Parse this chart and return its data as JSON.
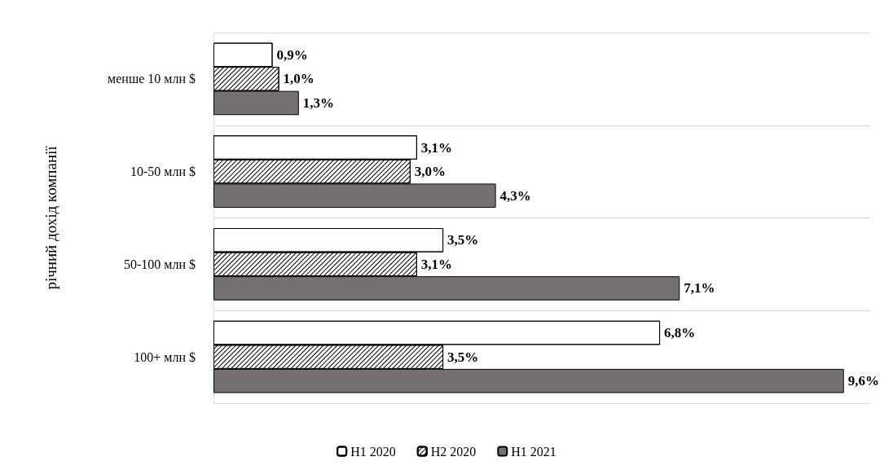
{
  "chart_data": {
    "type": "bar",
    "orientation": "horizontal",
    "ylabel": "річний дохід компанії",
    "categories": [
      "менше 10 млн $",
      "10-50 млн $",
      "50-100 млн $",
      "100+ млн $"
    ],
    "series": [
      {
        "name": "H1 2020",
        "color": "#ffffff",
        "values": [
          0.9,
          3.1,
          3.5,
          6.8
        ],
        "value_labels": [
          "0,9%",
          "3,1%",
          "3,5%",
          "6,8%"
        ]
      },
      {
        "name": "H2 2020",
        "color": "#ffffff",
        "values": [
          1.0,
          3.0,
          3.1,
          3.5
        ],
        "value_labels": [
          "1,0%",
          "3,0%",
          "3,1%",
          "3,5%"
        ]
      },
      {
        "name": "H1 2021",
        "color": "#767171",
        "values": [
          1.3,
          4.3,
          7.1,
          9.6
        ],
        "value_labels": [
          "1,3%",
          "4,3%",
          "7,1%",
          "9,6%"
        ]
      }
    ],
    "grid": "y",
    "legend": "bottom"
  }
}
